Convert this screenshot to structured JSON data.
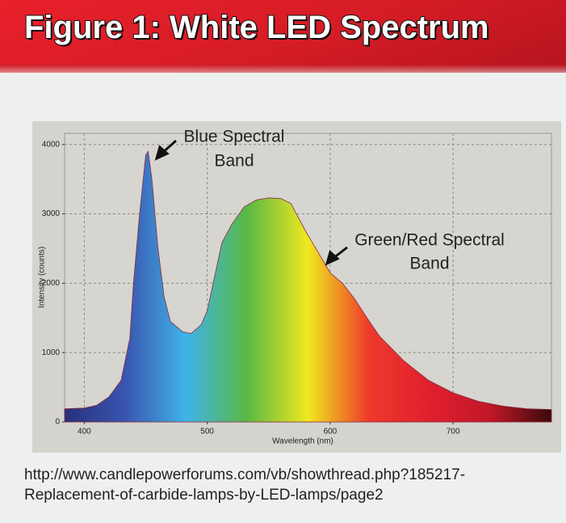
{
  "header": {
    "title": "Figure 1: White LED Spectrum"
  },
  "chart_data": {
    "type": "area",
    "x_label": "Wavelength (nm)",
    "y_label": "Intensity (counts)",
    "x": [
      384,
      400,
      410,
      420,
      430,
      437,
      440,
      445,
      450,
      452,
      455,
      460,
      465,
      470,
      480,
      487,
      495,
      500,
      512,
      520,
      530,
      540,
      550,
      560,
      568,
      580,
      590,
      600,
      610,
      620,
      630,
      640,
      650,
      660,
      680,
      700,
      720,
      740,
      760,
      780
    ],
    "series": [
      {
        "name": "White LED",
        "gradient": [
          "#28307a",
          "#3a55b0",
          "#3fb4e8",
          "#5ab845",
          "#f0e820",
          "#ee3a2a",
          "#e01f2e",
          "#c01828",
          "#3a0a0a"
        ],
        "values": [
          190,
          200,
          240,
          360,
          600,
          1200,
          2000,
          3000,
          3850,
          3900,
          3500,
          2500,
          1800,
          1450,
          1300,
          1275,
          1400,
          1600,
          2585,
          2850,
          3100,
          3200,
          3230,
          3220,
          3150,
          2750,
          2450,
          2150,
          2000,
          1770,
          1500,
          1240,
          1060,
          880,
          600,
          420,
          300,
          230,
          190,
          180
        ]
      }
    ],
    "xlim": [
      384,
      780
    ],
    "ylim": [
      0,
      4160
    ],
    "xticks": [
      400,
      500,
      600,
      700
    ],
    "yticks": [
      0,
      1000,
      2000,
      3000,
      4000
    ],
    "grid": true,
    "annotations": [
      {
        "text": "Blue Spectral",
        "text2": "Band"
      },
      {
        "text": "Green/Red Spectral",
        "text2": "Band"
      }
    ]
  },
  "source": [
    "http://www.candlepowerforums.com/vb/showthread.php?185217-",
    "Replacement-of-carbide-lamps-by-LED-lamps/page2"
  ]
}
